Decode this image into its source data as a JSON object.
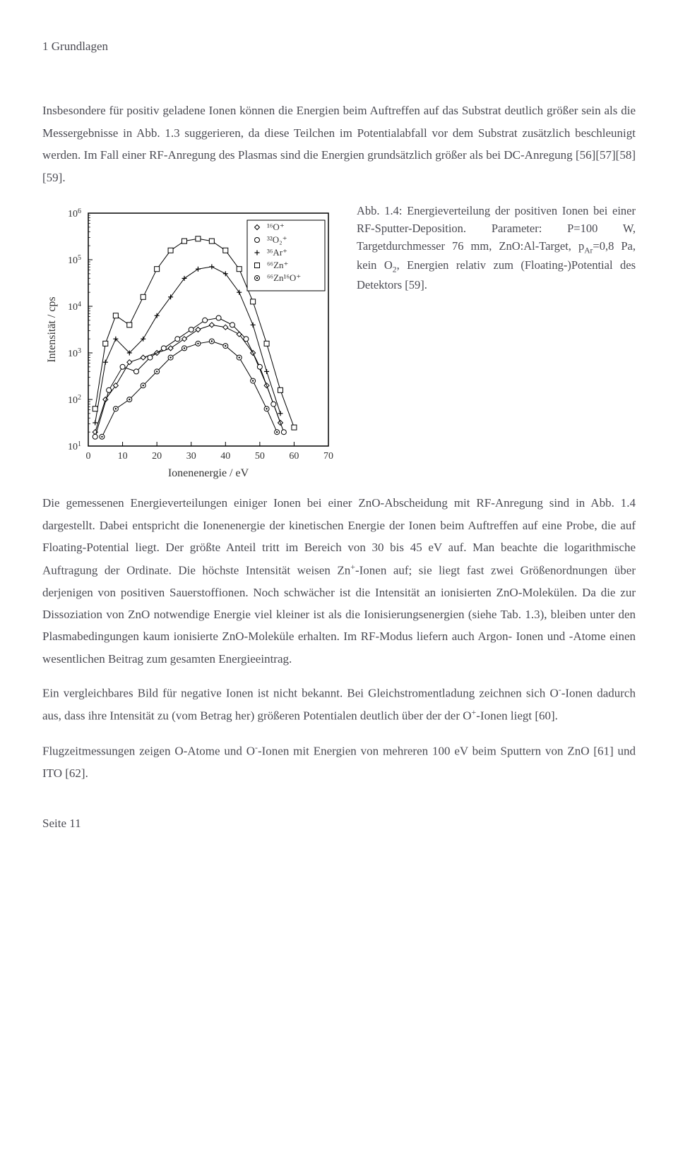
{
  "header": "1 Grundlagen",
  "para1": "Insbesondere für positiv geladene Ionen können die Energien beim Auftreffen auf das Substrat deutlich größer sein als die Messergebnisse in Abb. 1.3 suggerieren, da diese Teilchen im Potentialabfall vor dem Substrat zusätzlich beschleunigt werden. Im Fall einer RF-Anregung des Plasmas sind die Energien grundsätzlich größer als bei DC-Anregung [56][57][58][59].",
  "figcap_prefix": "Abb. 1.4: Energieverteilung der positiven Ionen bei einer RF-Sputter-Deposition. Parameter: P=100 W, Targetdurchmesser 76 mm, ZnO:Al-Target, p",
  "figcap_arsub": "Ar",
  "figcap_mid": "=0,8 Pa, kein O",
  "figcap_2sub": "2",
  "figcap_suffix": ", Energien relativ zum (Floating-)Potential des Detektors [59].",
  "para2_a": "Die gemessenen Energieverteilungen einiger Ionen bei einer ZnO-Abscheidung mit RF-Anregung sind in Abb. 1.4 dargestellt. Dabei entspricht die Ionenenergie der kinetischen Energie der Ionen beim Auftreffen auf eine Probe, die auf Floating-Potential liegt. Der größte Anteil tritt im Bereich von 30 bis 45 eV auf. Man beachte die logarithmische Auftragung der Ordinate. Die höchste Intensität weisen Zn",
  "para2_b": "-Ionen auf; sie liegt fast zwei Größenordnungen über derjenigen von positiven Sauerstoffionen. Noch schwächer ist die Intensität an ionisierten ZnO-Molekülen. Da die zur Dissoziation von ZnO notwendige Energie viel kleiner ist als die Ionisierungsenergien (siehe Tab. 1.3), bleiben unter den Plasmabedingungen kaum ionisierte ZnO-Moleküle erhalten. Im RF-Modus liefern auch Argon- Ionen und -Atome einen wesentlichen Beitrag zum gesamten Energieeintrag.",
  "para3_a": "Ein vergleichbares Bild für negative Ionen ist nicht bekannt. Bei Gleichstromentladung zeichnen sich O",
  "para3_b": "-Ionen dadurch aus, dass ihre Intensität zu (vom Betrag her) größeren Potentialen deutlich über der der O",
  "para3_c": "-Ionen liegt [60].",
  "para4_a": "Flugzeitmessungen zeigen O-Atome und O",
  "para4_b": "-Ionen mit Energien von mehreren 100 eV beim Sputtern von ZnO [61] und ITO [62].",
  "footer": "Seite 11",
  "chart": {
    "type": "line-log",
    "xlabel": "Ionenenergie / eV",
    "ylabel": "Intensität / cps",
    "xlim": [
      0,
      70
    ],
    "ylim_exp": [
      1,
      6
    ],
    "xtick_step": 10,
    "xticks": [
      0,
      10,
      20,
      30,
      40,
      50,
      60,
      70
    ],
    "yticks_exp": [
      1,
      2,
      3,
      4,
      5,
      6
    ],
    "stroke_color": "#000000",
    "bg_color": "#ffffff",
    "axis_fontsize": 14,
    "label_fontsize": 16,
    "legend": [
      {
        "label": "¹⁶O⁺",
        "marker": "diamond-open"
      },
      {
        "label": "³²O₂⁺",
        "marker": "circle-open"
      },
      {
        "label": "³⁶Ar⁺",
        "marker": "cross"
      },
      {
        "label": "⁶⁶Zn⁺",
        "marker": "square-open"
      },
      {
        "label": "⁶⁶Zn¹⁶O⁺",
        "marker": "circle-dot"
      }
    ],
    "series": {
      "O": [
        {
          "x": 2,
          "y": 1.3
        },
        {
          "x": 5,
          "y": 2.0
        },
        {
          "x": 8,
          "y": 2.3
        },
        {
          "x": 12,
          "y": 2.8
        },
        {
          "x": 16,
          "y": 2.9
        },
        {
          "x": 20,
          "y": 3.0
        },
        {
          "x": 24,
          "y": 3.1
        },
        {
          "x": 28,
          "y": 3.3
        },
        {
          "x": 32,
          "y": 3.5
        },
        {
          "x": 36,
          "y": 3.6
        },
        {
          "x": 40,
          "y": 3.55
        },
        {
          "x": 44,
          "y": 3.4
        },
        {
          "x": 48,
          "y": 3.0
        },
        {
          "x": 52,
          "y": 2.3
        },
        {
          "x": 56,
          "y": 1.5
        }
      ],
      "O2": [
        {
          "x": 2,
          "y": 1.2
        },
        {
          "x": 6,
          "y": 2.2
        },
        {
          "x": 10,
          "y": 2.7
        },
        {
          "x": 14,
          "y": 2.6
        },
        {
          "x": 18,
          "y": 2.9
        },
        {
          "x": 22,
          "y": 3.1
        },
        {
          "x": 26,
          "y": 3.3
        },
        {
          "x": 30,
          "y": 3.5
        },
        {
          "x": 34,
          "y": 3.7
        },
        {
          "x": 38,
          "y": 3.75
        },
        {
          "x": 42,
          "y": 3.6
        },
        {
          "x": 46,
          "y": 3.3
        },
        {
          "x": 50,
          "y": 2.7
        },
        {
          "x": 54,
          "y": 1.9
        },
        {
          "x": 57,
          "y": 1.3
        }
      ],
      "Ar": [
        {
          "x": 2,
          "y": 1.5
        },
        {
          "x": 5,
          "y": 2.8
        },
        {
          "x": 8,
          "y": 3.3
        },
        {
          "x": 12,
          "y": 3.0
        },
        {
          "x": 16,
          "y": 3.3
        },
        {
          "x": 20,
          "y": 3.8
        },
        {
          "x": 24,
          "y": 4.2
        },
        {
          "x": 28,
          "y": 4.6
        },
        {
          "x": 32,
          "y": 4.8
        },
        {
          "x": 36,
          "y": 4.85
        },
        {
          "x": 40,
          "y": 4.7
        },
        {
          "x": 44,
          "y": 4.3
        },
        {
          "x": 48,
          "y": 3.6
        },
        {
          "x": 52,
          "y": 2.6
        },
        {
          "x": 56,
          "y": 1.7
        }
      ],
      "Zn": [
        {
          "x": 2,
          "y": 1.8
        },
        {
          "x": 5,
          "y": 3.2
        },
        {
          "x": 8,
          "y": 3.8
        },
        {
          "x": 12,
          "y": 3.6
        },
        {
          "x": 16,
          "y": 4.2
        },
        {
          "x": 20,
          "y": 4.8
        },
        {
          "x": 24,
          "y": 5.2
        },
        {
          "x": 28,
          "y": 5.4
        },
        {
          "x": 32,
          "y": 5.45
        },
        {
          "x": 36,
          "y": 5.4
        },
        {
          "x": 40,
          "y": 5.2
        },
        {
          "x": 44,
          "y": 4.8
        },
        {
          "x": 48,
          "y": 4.1
        },
        {
          "x": 52,
          "y": 3.2
        },
        {
          "x": 56,
          "y": 2.2
        },
        {
          "x": 60,
          "y": 1.4
        }
      ],
      "ZnO": [
        {
          "x": 4,
          "y": 1.2
        },
        {
          "x": 8,
          "y": 1.8
        },
        {
          "x": 12,
          "y": 2.0
        },
        {
          "x": 16,
          "y": 2.3
        },
        {
          "x": 20,
          "y": 2.6
        },
        {
          "x": 24,
          "y": 2.9
        },
        {
          "x": 28,
          "y": 3.1
        },
        {
          "x": 32,
          "y": 3.2
        },
        {
          "x": 36,
          "y": 3.25
        },
        {
          "x": 40,
          "y": 3.15
        },
        {
          "x": 44,
          "y": 2.9
        },
        {
          "x": 48,
          "y": 2.4
        },
        {
          "x": 52,
          "y": 1.8
        },
        {
          "x": 55,
          "y": 1.3
        }
      ]
    }
  }
}
